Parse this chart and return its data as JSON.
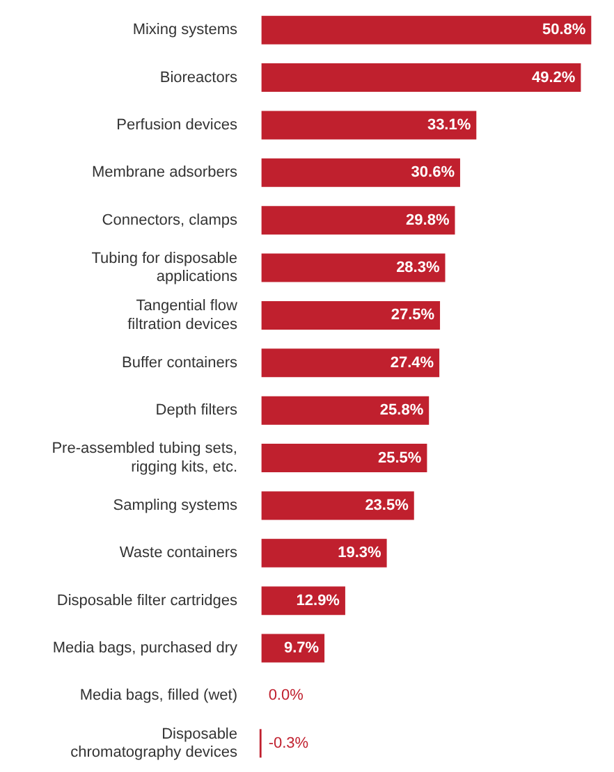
{
  "chart_data": {
    "type": "bar",
    "orientation": "horizontal",
    "color": "#c0202e",
    "categories": [
      "Mixing systems",
      "Bioreactors",
      "Perfusion devices",
      "Membrane adsorbers",
      "Connectors, clamps",
      "Tubing for disposable\napplications",
      "Tangential flow\nfiltration devices",
      "Buffer containers",
      "Depth filters",
      "Pre-assembled tubing sets,\nrigging kits, etc.",
      "Sampling systems",
      "Waste containers",
      "Disposable filter cartridges",
      "Media bags, purchased dry",
      "Media bags, filled (wet)",
      "Disposable\nchromatography devices"
    ],
    "values": [
      50.8,
      49.2,
      33.1,
      30.6,
      29.8,
      28.3,
      27.5,
      27.4,
      25.8,
      25.5,
      23.5,
      19.3,
      12.9,
      9.7,
      0.0,
      -0.3
    ],
    "value_labels": [
      "50.8%",
      "49.2%",
      "33.1%",
      "30.6%",
      "29.8%",
      "28.3%",
      "27.5%",
      "27.4%",
      "25.8%",
      "25.5%",
      "23.5%",
      "19.3%",
      "12.9%",
      "9.7%",
      "0.0%",
      "-0.3%"
    ]
  }
}
